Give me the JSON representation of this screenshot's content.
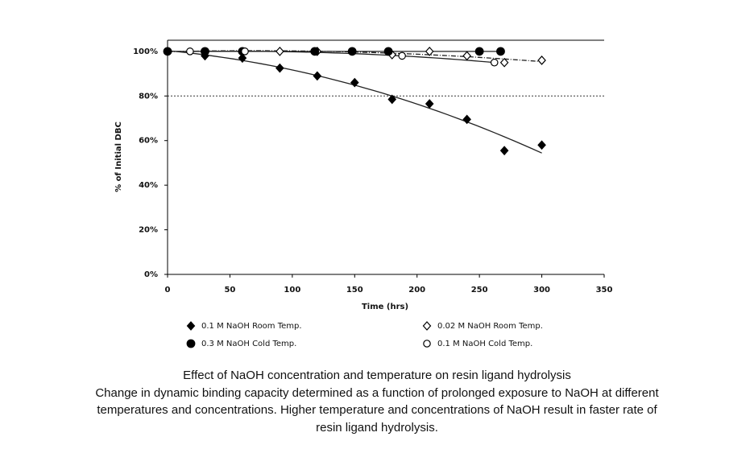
{
  "chart_data": {
    "type": "scatter",
    "x_label": "Time (hrs)",
    "y_label": "% of Initial DBC",
    "xlim": [
      0,
      350
    ],
    "xticks": [
      0,
      50,
      100,
      150,
      200,
      250,
      300,
      350
    ],
    "ylim": [
      0,
      105
    ],
    "yticks": [
      {
        "value": 0,
        "label": "0%"
      },
      {
        "value": 20,
        "label": "20%"
      },
      {
        "value": 40,
        "label": "40%"
      },
      {
        "value": 60,
        "label": "60%"
      },
      {
        "value": 80,
        "label": "80%"
      },
      {
        "value": 100,
        "label": "100%"
      }
    ],
    "reference_line": 80,
    "series": [
      {
        "name": "0.1 M NaOH Room Temp.",
        "color": "#000000",
        "marker": "diamond-filled",
        "trendline": "solid",
        "x": [
          0,
          30,
          60,
          90,
          120,
          150,
          180,
          210,
          240,
          270,
          300
        ],
        "values": [
          100,
          98,
          97,
          92.5,
          89,
          86,
          78.5,
          76.5,
          69.5,
          55.5,
          58
        ]
      },
      {
        "name": "0.02 M NaOH Room Temp.",
        "color": "#000000",
        "marker": "diamond-open",
        "trendline": "dashdot",
        "x": [
          0,
          90,
          120,
          180,
          210,
          240,
          270,
          300
        ],
        "values": [
          100,
          100,
          100,
          98.5,
          100,
          98,
          95,
          96
        ]
      },
      {
        "name": "0.3 M NaOH Cold Temp.",
        "color": "#000000",
        "marker": "circle-filled",
        "trendline": "solid",
        "x": [
          0,
          30,
          60,
          118,
          148,
          177,
          250,
          267
        ],
        "values": [
          100,
          100,
          100,
          100,
          100,
          100,
          100,
          100
        ]
      },
      {
        "name": "0.1 M NaOH Cold Temp.",
        "color": "#000000",
        "marker": "circle-open",
        "trendline": "solid",
        "x": [
          18,
          62,
          188,
          262
        ],
        "values": [
          100,
          100,
          98,
          95
        ]
      }
    ]
  },
  "caption": {
    "title": "Effect of NaOH concentration and temperature on resin ligand hydrolysis",
    "lines": [
      "Change in dynamic binding capacity determined as a function of prolonged exposure to NaOH at different",
      "temperatures and concentrations.  Higher temperature and concentrations of NaOH result in faster rate of",
      "resin ligand hydrolysis."
    ]
  }
}
